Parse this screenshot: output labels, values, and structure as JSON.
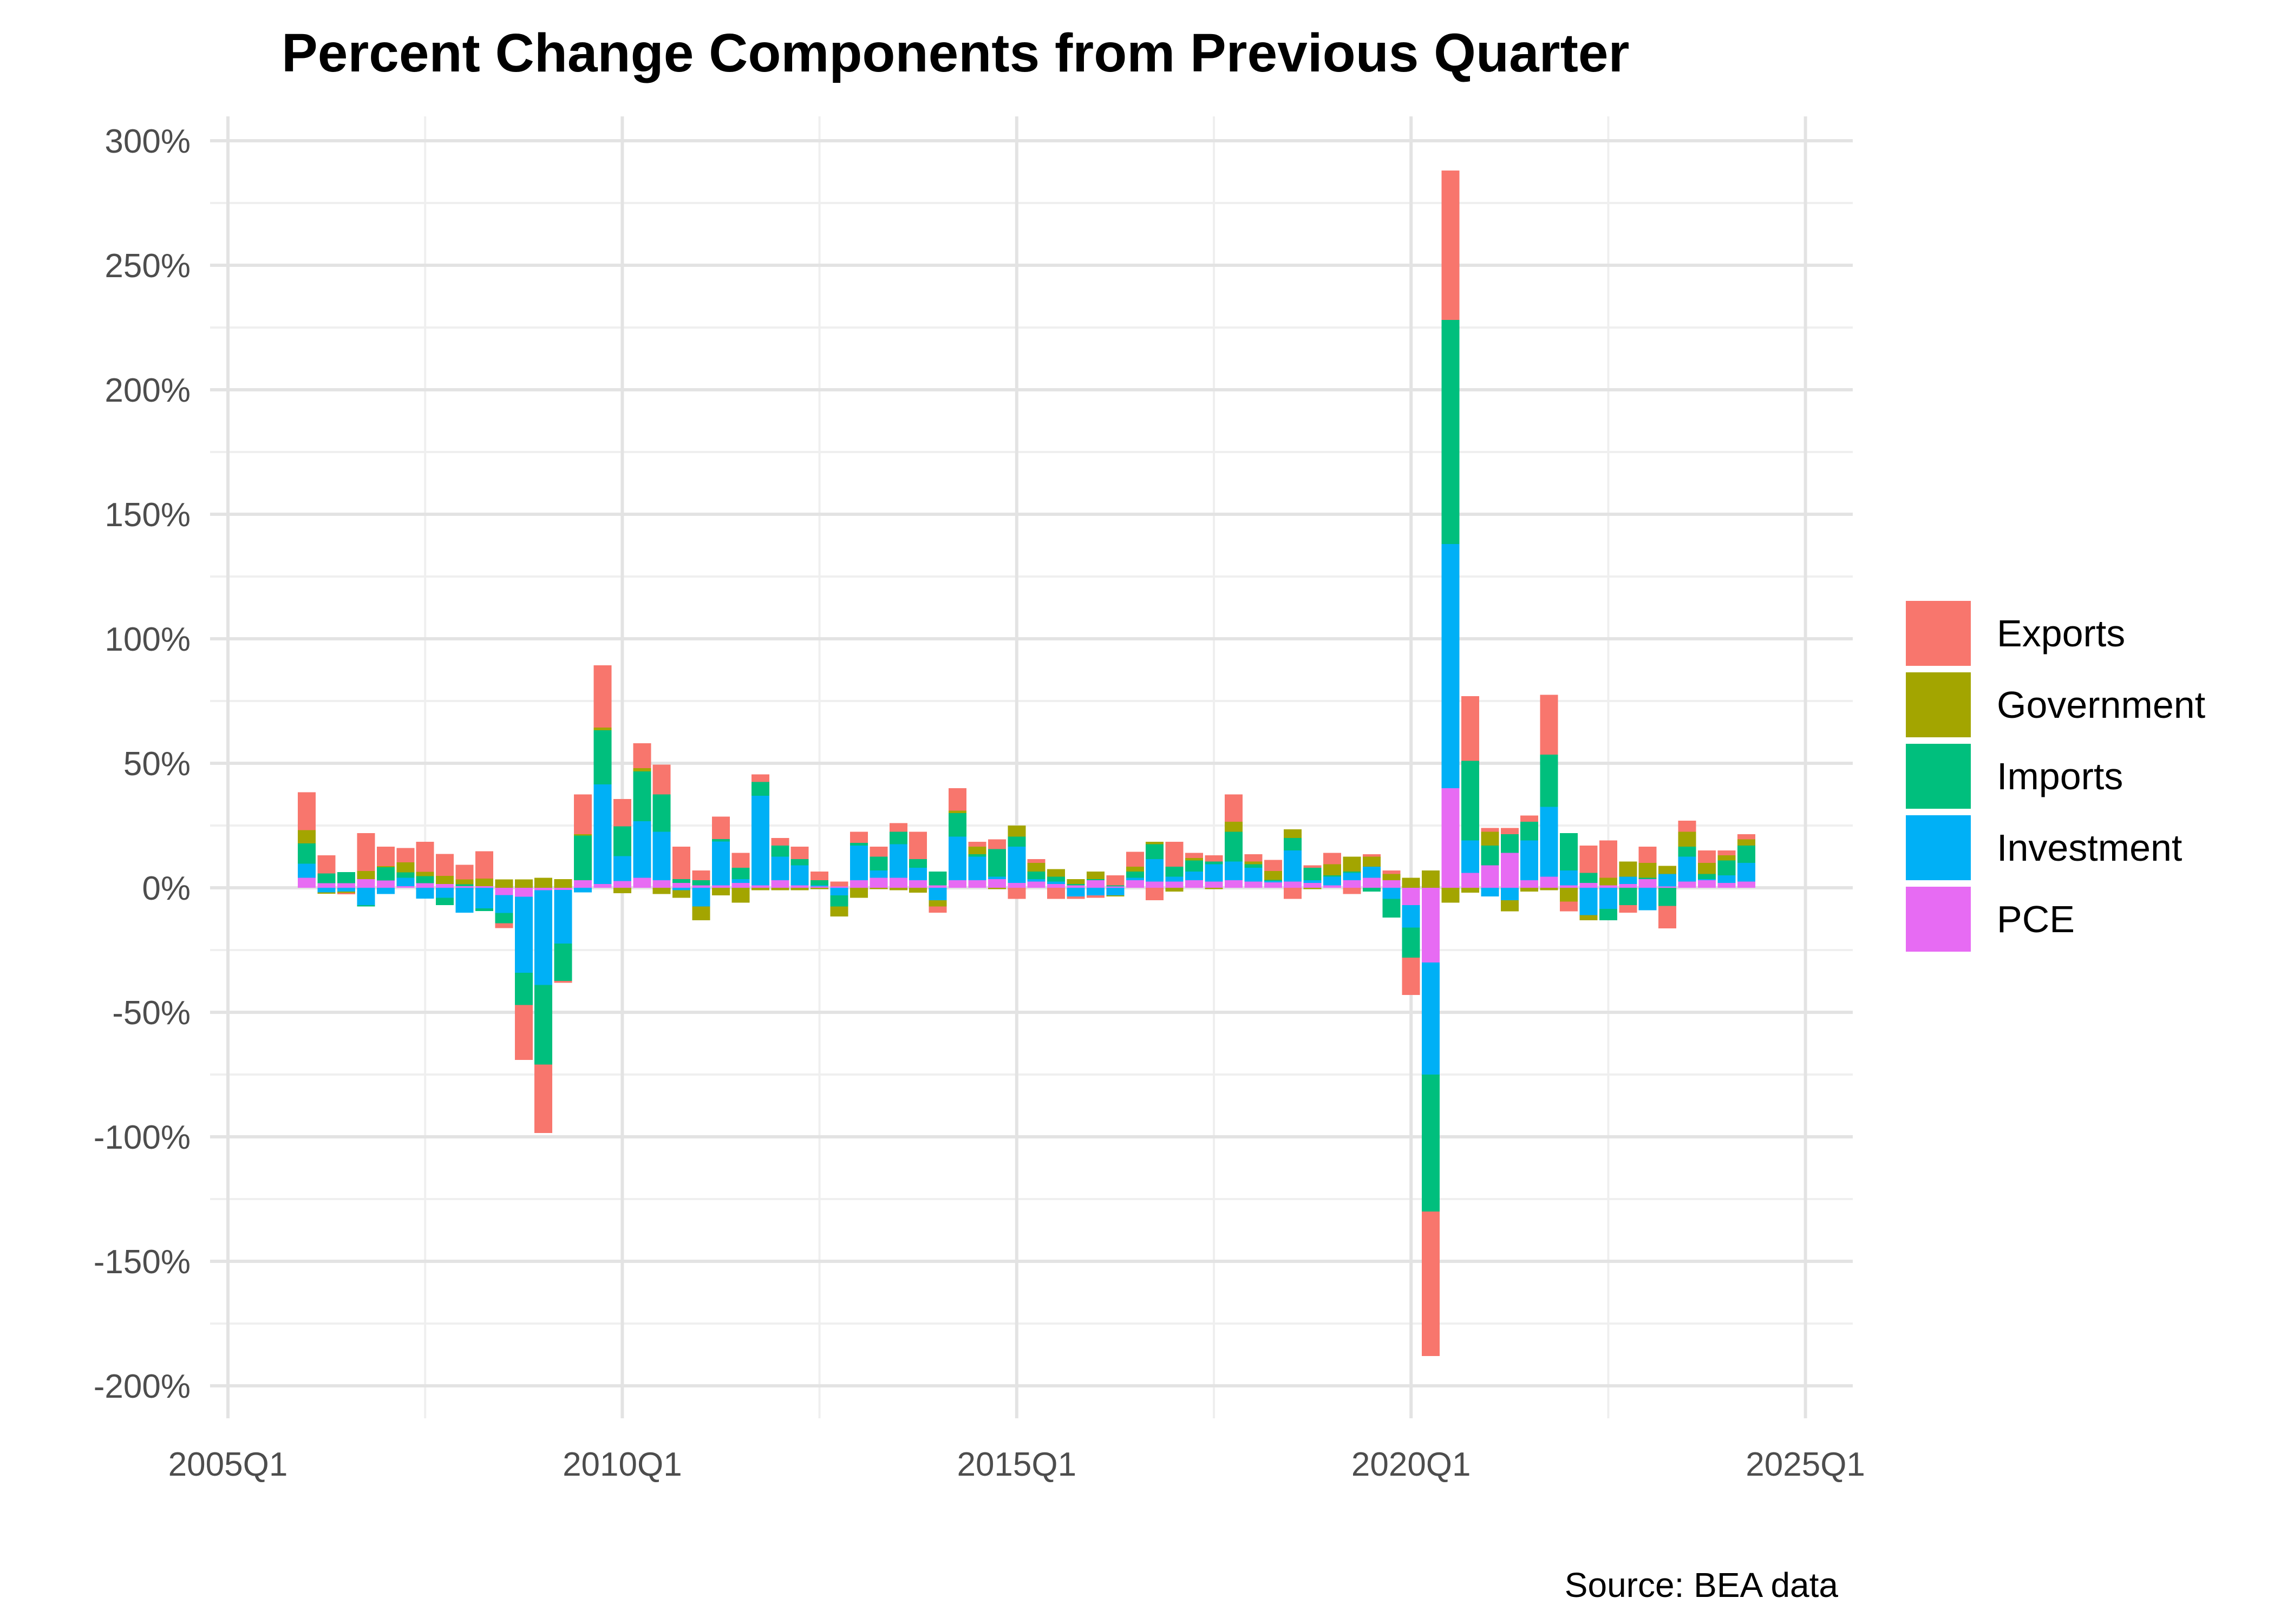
{
  "page": {
    "background": "#ffffff"
  },
  "chart_data": {
    "type": "bar",
    "stacked": true,
    "title": "Percent Change Components from Previous Quarter",
    "source_note": "Source: BEA data",
    "grid": "on",
    "legend_position": "right",
    "y_axis": {
      "unit": "%",
      "ylim": [
        -200,
        300
      ],
      "tick_values": [
        300,
        250,
        200,
        150,
        100,
        50,
        0,
        -50,
        -100,
        -150,
        -200
      ],
      "tick_labels": [
        "300%",
        "250%",
        "200%",
        "150%",
        "100%",
        "50%",
        "0%",
        "-50%",
        "-100%",
        "-150%",
        "-200%"
      ]
    },
    "x_axis": {
      "tick_labels": [
        "2005Q1",
        "2010Q1",
        "2015Q1",
        "2020Q1",
        "2025Q1"
      ],
      "tick_quarter_offsets": [
        0,
        20,
        40,
        60,
        80
      ],
      "minor_tick_quarter_offsets": [
        10,
        30,
        50,
        70
      ],
      "axis_start_quarter": "2005Q1",
      "first_data_quarter_offset": 4
    },
    "colors": {
      "Exports": "#F8766D",
      "Government": "#A3A500",
      "Imports": "#00BF7D",
      "Investment": "#00B0F6",
      "PCE": "#E76BF3",
      "grid_major": "#E3E3E3",
      "grid_minor": "#EFEFEF",
      "axis_text": "#4d4d4d"
    },
    "legend": {
      "entries": [
        {
          "label": "Exports",
          "color": "#F8766D"
        },
        {
          "label": "Government",
          "color": "#A3A500"
        },
        {
          "label": "Imports",
          "color": "#00BF7D"
        },
        {
          "label": "Investment",
          "color": "#00B0F6"
        },
        {
          "label": "PCE",
          "color": "#E76BF3"
        }
      ]
    },
    "stack_order_bottom_to_top": [
      "PCE",
      "Investment",
      "Imports",
      "Government",
      "Exports"
    ],
    "categories": [
      "2006Q1",
      "2006Q2",
      "2006Q3",
      "2006Q4",
      "2007Q1",
      "2007Q2",
      "2007Q3",
      "2007Q4",
      "2008Q1",
      "2008Q2",
      "2008Q3",
      "2008Q4",
      "2009Q1",
      "2009Q2",
      "2009Q3",
      "2009Q4",
      "2010Q1",
      "2010Q2",
      "2010Q3",
      "2010Q4",
      "2011Q1",
      "2011Q2",
      "2011Q3",
      "2011Q4",
      "2012Q1",
      "2012Q2",
      "2012Q3",
      "2012Q4",
      "2013Q1",
      "2013Q2",
      "2013Q3",
      "2013Q4",
      "2014Q1",
      "2014Q2",
      "2014Q3",
      "2014Q4",
      "2015Q1",
      "2015Q2",
      "2015Q3",
      "2015Q4",
      "2016Q1",
      "2016Q2",
      "2016Q3",
      "2016Q4",
      "2017Q1",
      "2017Q2",
      "2017Q3",
      "2017Q4",
      "2018Q1",
      "2018Q2",
      "2018Q3",
      "2018Q4",
      "2019Q1",
      "2019Q2",
      "2019Q3",
      "2019Q4",
      "2020Q1",
      "2020Q2",
      "2020Q3",
      "2020Q4",
      "2021Q1",
      "2021Q2",
      "2021Q3",
      "2021Q4",
      "2022Q1",
      "2022Q2",
      "2022Q3",
      "2022Q4",
      "2023Q1",
      "2023Q2",
      "2023Q3",
      "2023Q4",
      "2024Q1",
      "2024Q2"
    ],
    "series": [
      {
        "name": "PCE",
        "color": "#E76BF3",
        "values": [
          4,
          1.8,
          1.8,
          3.5,
          2.9,
          0.7,
          1.8,
          1.5,
          0.6,
          0.6,
          -2.9,
          -3.6,
          -1,
          -0.9,
          3,
          1.5,
          2.7,
          4,
          3,
          2,
          1,
          1,
          2,
          1,
          3,
          1,
          0.5,
          0.5,
          3,
          4,
          4,
          3,
          1,
          3,
          3,
          3.5,
          2,
          2.5,
          1.5,
          1,
          3,
          0.5,
          3,
          2.5,
          2.5,
          3,
          2.5,
          3,
          2.5,
          2.2,
          2.5,
          2,
          1,
          3,
          4,
          3,
          -7,
          -30,
          40,
          6,
          9,
          14,
          3,
          4.5,
          1,
          2,
          1,
          1.5,
          3.5,
          0.5,
          2.5,
          3,
          2,
          2.5
        ]
      },
      {
        "name": "Investment",
        "color": "#00B0F6",
        "values": [
          5.7,
          -1.8,
          -1.5,
          -7,
          -2.5,
          3.3,
          -4.3,
          -4,
          -10,
          -8.3,
          -7.2,
          -30.5,
          -38,
          -21.5,
          -1.8,
          40,
          10,
          22.7,
          19.5,
          -1,
          -7.5,
          17.6,
          1.5,
          36,
          9.5,
          8,
          0.5,
          -3,
          14,
          3,
          13.5,
          5,
          -5,
          17.5,
          9.5,
          1,
          14.5,
          1,
          1,
          -3.5,
          -3,
          -3,
          1,
          9,
          2,
          3.5,
          7,
          7.5,
          5.5,
          0.5,
          12.5,
          1,
          3.5,
          3,
          4.5,
          -4.5,
          -9,
          -45,
          98,
          13,
          -3.5,
          -5,
          16,
          28,
          6,
          -11,
          -8.5,
          3,
          -9,
          5,
          10,
          0.5,
          3,
          7.5
        ]
      },
      {
        "name": "Imports",
        "color": "#00BF7D",
        "values": [
          8.1,
          4,
          4.5,
          -0.5,
          5.4,
          2.2,
          2.9,
          -3,
          0.8,
          -1.1,
          -4.1,
          -13,
          -32,
          -15,
          18,
          21.8,
          12,
          20,
          15,
          1.5,
          2,
          1,
          4.5,
          5.5,
          4.5,
          2.5,
          2,
          -4.5,
          1,
          5.5,
          5,
          3.5,
          5.5,
          9.5,
          1,
          11,
          4,
          3,
          2,
          0.5,
          0.5,
          0.5,
          2.5,
          6,
          4,
          4.5,
          1,
          12,
          1.5,
          0.5,
          5,
          5,
          0.5,
          0.5,
          -1.5,
          -7.5,
          -12,
          -55,
          90,
          32,
          8,
          7.5,
          7.5,
          21,
          15,
          4,
          -4.5,
          -7,
          0.5,
          -7.3,
          4,
          2,
          6,
          7
        ]
      },
      {
        "name": "Government",
        "color": "#A3A500",
        "values": [
          5.4,
          -0.6,
          -0.6,
          3.2,
          0.4,
          4,
          1.7,
          3.3,
          2,
          3.1,
          3.4,
          3.4,
          4,
          3.5,
          0.5,
          1,
          -2.2,
          1.3,
          -2.5,
          -3,
          -5.5,
          -3,
          -6,
          -1,
          -1,
          -1,
          -0.5,
          -4,
          -4,
          -0.5,
          -1,
          -2,
          -2.5,
          1,
          3,
          -0.5,
          4.5,
          3.5,
          3,
          2,
          3,
          -0.5,
          2,
          1,
          -1.5,
          1,
          -0.5,
          4,
          1,
          3.5,
          3.5,
          -0.5,
          4.5,
          6,
          4,
          2.5,
          4,
          7,
          -6,
          -2,
          5.5,
          -4.5,
          -1.5,
          -1,
          -5.5,
          -2,
          3,
          6,
          6,
          3.3,
          6,
          4.5,
          2,
          2.5
        ]
      },
      {
        "name": "Exports",
        "color": "#F8766D",
        "values": [
          15.2,
          7.2,
          -0.5,
          15.3,
          7.8,
          5.8,
          12.1,
          8.8,
          5.8,
          11,
          -2,
          -22,
          -27.5,
          -0.8,
          16,
          25,
          11,
          10,
          12,
          13,
          4,
          9,
          6,
          3,
          3,
          5,
          3.5,
          2,
          4.5,
          4,
          3.5,
          11,
          -2.5,
          9,
          2,
          4,
          -4.5,
          1.5,
          -4.5,
          -1,
          -1,
          4,
          6,
          -5,
          10,
          2,
          2.5,
          11,
          3,
          4.5,
          -4.5,
          1,
          4.5,
          -2.5,
          1,
          1.5,
          -15,
          -58,
          60,
          26,
          1.5,
          2.5,
          2.5,
          24,
          -4,
          11,
          15,
          -3,
          6.5,
          -9,
          4.5,
          5,
          2,
          2
        ]
      }
    ]
  }
}
